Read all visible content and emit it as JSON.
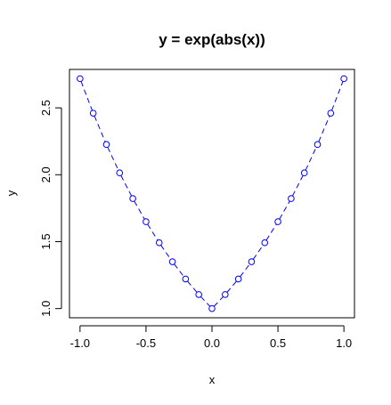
{
  "chart_data": {
    "type": "line",
    "title": "y = exp(abs(x))",
    "xlabel": "x",
    "ylabel": "y",
    "xlim": [
      -1.0,
      1.0
    ],
    "ylim": [
      1.0,
      2.71828
    ],
    "x_ticks": [
      -1.0,
      -0.5,
      0.0,
      0.5,
      1.0
    ],
    "x_tick_labels": [
      "-1.0",
      "-0.5",
      "0.0",
      "0.5",
      "1.0"
    ],
    "y_ticks": [
      1.0,
      1.5,
      2.0,
      2.5
    ],
    "y_tick_labels": [
      "1.0",
      "1.5",
      "2.0",
      "2.5"
    ],
    "grid": false,
    "series": [
      {
        "color": "#0000ff",
        "line_style": "dashed",
        "marker": "open-circle",
        "x": [
          -1.0,
          -0.9,
          -0.8,
          -0.7,
          -0.6,
          -0.5,
          -0.4,
          -0.3,
          -0.2,
          -0.1,
          0.0,
          0.1,
          0.2,
          0.3,
          0.4,
          0.5,
          0.6,
          0.7,
          0.8,
          0.9,
          1.0
        ],
        "y": [
          2.718,
          2.46,
          2.226,
          2.014,
          1.822,
          1.649,
          1.492,
          1.35,
          1.221,
          1.105,
          1.0,
          1.105,
          1.221,
          1.35,
          1.492,
          1.649,
          1.822,
          2.014,
          2.226,
          2.46,
          2.718
        ]
      }
    ]
  }
}
